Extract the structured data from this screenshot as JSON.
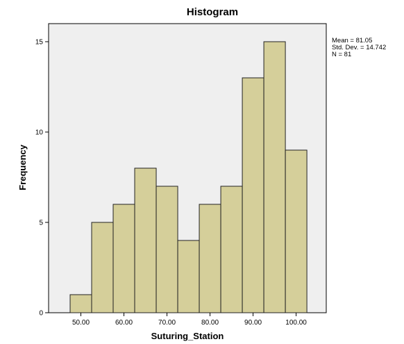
{
  "chart_data": {
    "type": "bar",
    "title": "Histogram",
    "xlabel": "Suturing_Station",
    "ylabel": "Frequency",
    "bin_edges": [
      47.5,
      52.5,
      57.5,
      62.5,
      67.5,
      72.5,
      77.5,
      82.5,
      87.5,
      92.5,
      97.5,
      102.5
    ],
    "values": [
      1,
      5,
      6,
      8,
      7,
      4,
      6,
      7,
      13,
      15,
      9
    ],
    "xlim": [
      42.5,
      107
    ],
    "ylim": [
      0,
      16
    ],
    "x_ticks": [
      50,
      60,
      70,
      80,
      90,
      100
    ],
    "x_tick_labels": [
      "50.00",
      "60.00",
      "70.00",
      "80.00",
      "90.00",
      "100.00"
    ],
    "y_ticks": [
      0,
      5,
      10,
      15
    ],
    "y_tick_labels": [
      "0",
      "5",
      "10",
      "15"
    ],
    "grid": false,
    "stats": {
      "mean": "Mean = 81.05",
      "std_dev": "Std. Dev. = 14.742",
      "n": "N = 81"
    },
    "colors": {
      "bar_fill": "#d5cf9a",
      "bar_stroke": "#222222",
      "plot_background": "#efefef"
    }
  }
}
